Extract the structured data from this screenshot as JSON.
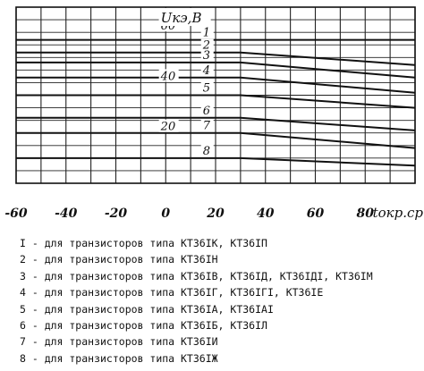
{
  "chart_data": {
    "type": "line",
    "ylabel": "Uкэ,B",
    "xlabel": "tокр.ср.,°C",
    "x_ticks": [
      "-60",
      "-40",
      "-20",
      "0",
      "20",
      "40",
      "60",
      "80"
    ],
    "y_ticks": [
      {
        "label": "60",
        "value": 60
      },
      {
        "label": "40",
        "value": 40
      },
      {
        "label": "20",
        "value": 20
      }
    ],
    "xlim": [
      -60,
      100
    ],
    "ylim": [
      0,
      70
    ],
    "grid": true,
    "series": [
      {
        "name": "1",
        "x": [
          -60,
          30,
          100
        ],
        "y": [
          57,
          57,
          57
        ]
      },
      {
        "name": "2",
        "x": [
          -60,
          30,
          100
        ],
        "y": [
          52,
          52,
          47
        ]
      },
      {
        "name": "3",
        "x": [
          -60,
          30,
          100
        ],
        "y": [
          48,
          48,
          42
        ]
      },
      {
        "name": "4",
        "x": [
          -60,
          30,
          100
        ],
        "y": [
          42,
          42,
          36
        ]
      },
      {
        "name": "5",
        "x": [
          -60,
          30,
          100
        ],
        "y": [
          35,
          35,
          30
        ]
      },
      {
        "name": "6",
        "x": [
          -60,
          30,
          100
        ],
        "y": [
          26,
          26,
          21
        ]
      },
      {
        "name": "7",
        "x": [
          -60,
          30,
          100
        ],
        "y": [
          20,
          20,
          14
        ]
      },
      {
        "name": "8",
        "x": [
          -60,
          30,
          100
        ],
        "y": [
          10,
          10,
          7
        ]
      }
    ]
  },
  "legend": [
    "I - для транзисторов типа КТ36IК, КТ36IП",
    "2 - для транзисторов типа КТ36IН",
    "3 - для транзисторов типа КТ36IВ, КТ36IД, КТ36IДI, КТ36IМ",
    "4 - для транзисторов типа КТ36IГ, КТ36IГI, КТ36IЕ",
    "5 - для транзисторов типа КТ36IА, КТ36IАI",
    "6 - для транзисторов типа КТ36IБ, КТ36IЛ",
    "7 - для транзисторов типа КТ36IИ",
    "8 - для транзисторов типа КТ36IЖ"
  ]
}
